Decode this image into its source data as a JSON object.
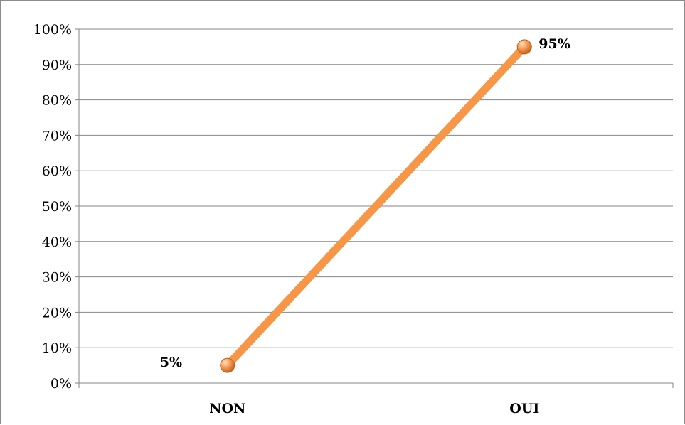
{
  "chart_data": {
    "type": "line",
    "categories": [
      "NON",
      "OUI"
    ],
    "series": [
      {
        "values": [
          5,
          95
        ],
        "data_labels": [
          "5%",
          "95%"
        ],
        "color": "#F79646"
      }
    ],
    "y_tick_labels": [
      "0%",
      "10%",
      "20%",
      "30%",
      "40%",
      "50%",
      "60%",
      "70%",
      "80%",
      "90%",
      "100%"
    ],
    "ylim": [
      0,
      100
    ],
    "grid": true,
    "legend": "none",
    "marker_color": "#F79646",
    "gridline_color": "#868686"
  }
}
